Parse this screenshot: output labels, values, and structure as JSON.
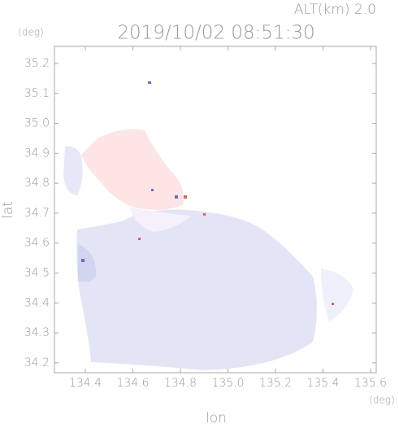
{
  "chart_data": {
    "type": "map",
    "annotation": "ALT(km) 2.0",
    "title": "2019/10/02 08:51:30",
    "ylabel": "lat",
    "yunit": "(deg)",
    "xlabel": "lon",
    "xunit": "(deg)",
    "xlim": [
      134.27,
      135.624
    ],
    "ylim": [
      34.167,
      35.257
    ],
    "xticks": [
      134.4,
      134.6,
      134.8,
      {
        "value": 135.0,
        "label": "135.0"
      },
      135.2,
      135.4,
      135.6
    ],
    "yticks": [
      34.2,
      34.3,
      34.4,
      34.5,
      34.6,
      34.7,
      34.8,
      34.9,
      {
        "value": 35.0,
        "label": "35.0"
      },
      35.1,
      35.2
    ]
  }
}
